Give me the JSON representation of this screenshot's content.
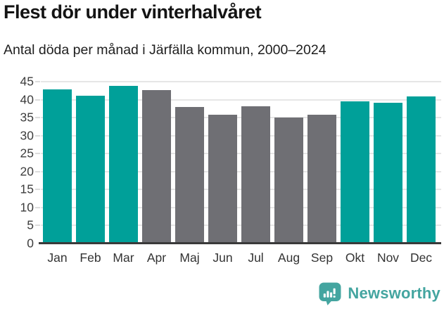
{
  "title": "Flest dör under vinterhalvåret",
  "subtitle": "Antal döda per månad i Järfälla kommun, 2000–2024",
  "branding": {
    "logo_text": "Newsworthy",
    "logo_icon": "newsworthy-speech-bubble-bar-chart-icon",
    "color": "#44a5a0"
  },
  "colors": {
    "winter_bar": "#00a099",
    "summer_bar": "#6f6f74",
    "gridline": "#e6e6e6",
    "axis_line": "#3a3a3a",
    "axis_label": "#3d3d3d",
    "background": "#ffffff"
  },
  "chart_data": {
    "type": "bar",
    "title": "Flest dör under vinterhalvåret",
    "subtitle": "Antal döda per månad i Järfälla kommun, 2000–2024",
    "categories": [
      "Jan",
      "Feb",
      "Mar",
      "Apr",
      "Maj",
      "Jun",
      "Jul",
      "Aug",
      "Sep",
      "Okt",
      "Nov",
      "Dec"
    ],
    "values": [
      42.9,
      41.0,
      43.8,
      42.6,
      38.0,
      35.8,
      38.2,
      35.1,
      35.9,
      39.5,
      39.1,
      40.9
    ],
    "highlighted_categories": [
      "Jan",
      "Feb",
      "Mar",
      "Okt",
      "Nov",
      "Dec"
    ],
    "highlight_meaning": "winter half-year months (teal), others gray",
    "xlabel": "",
    "ylabel": "",
    "ylim": [
      0,
      45
    ],
    "yticks": [
      0,
      5,
      10,
      15,
      20,
      25,
      30,
      35,
      40,
      45
    ],
    "grid": "horizontal",
    "legend": "none"
  }
}
